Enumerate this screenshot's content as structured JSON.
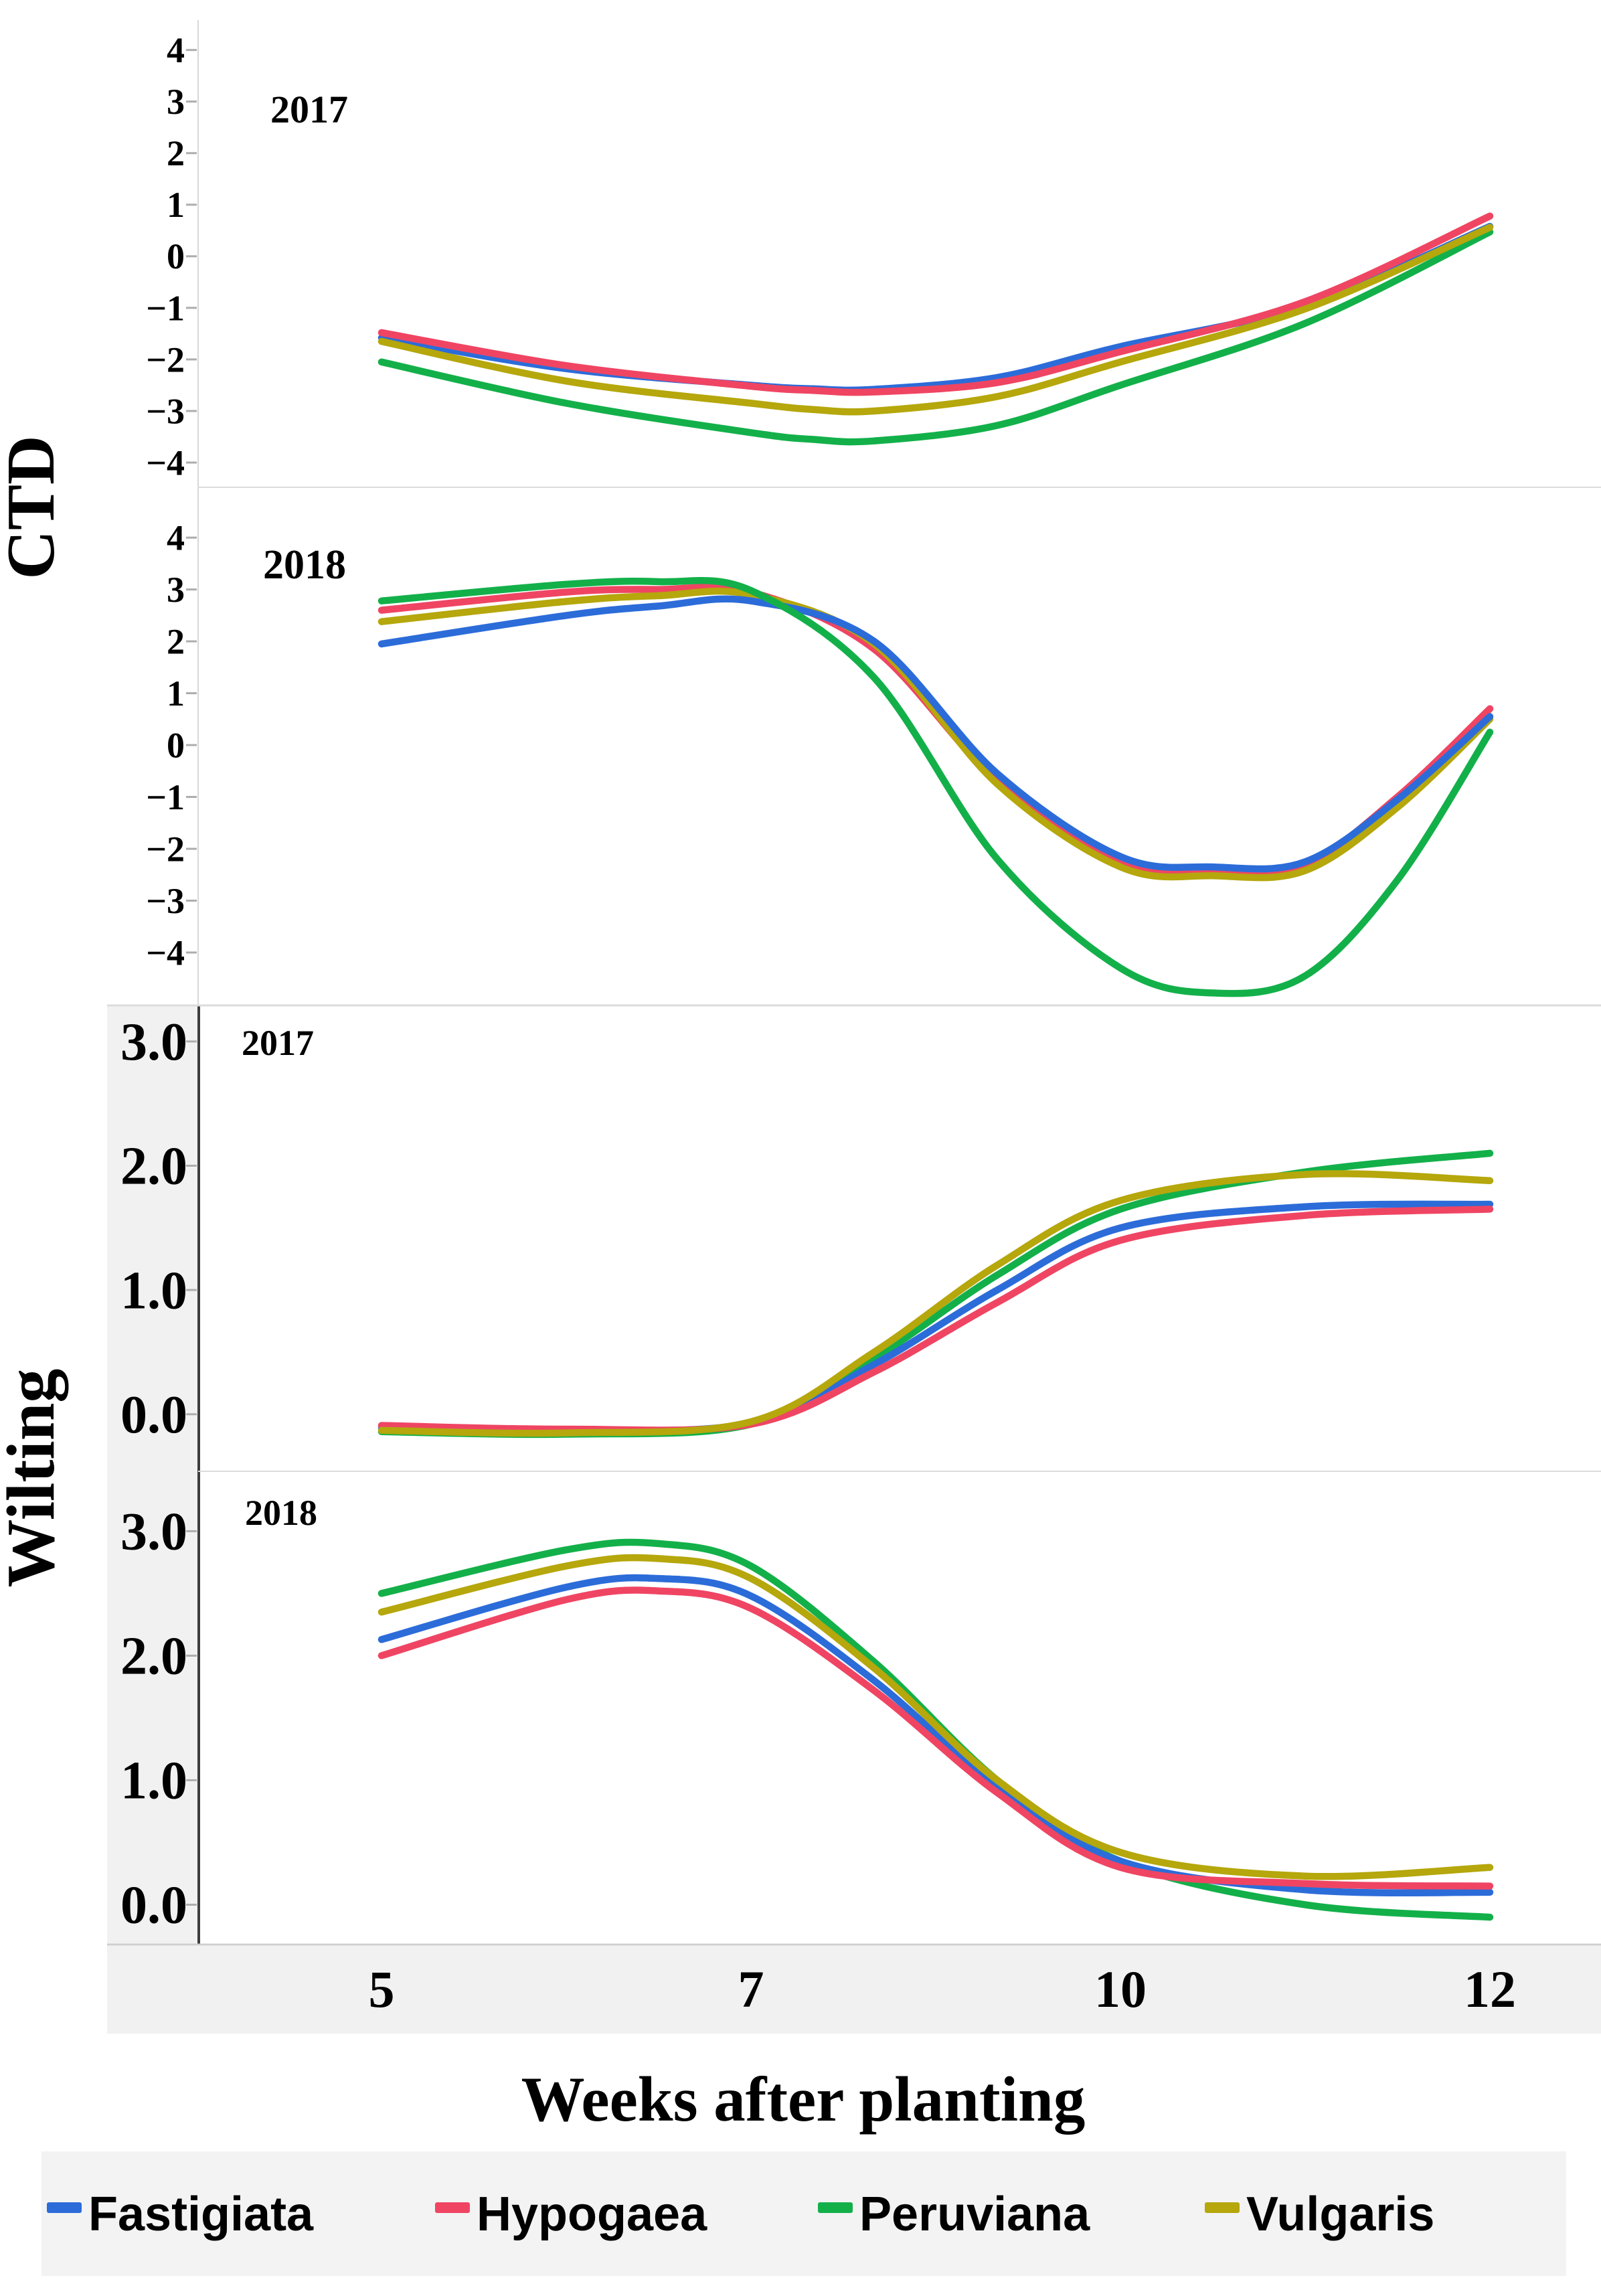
{
  "figure": {
    "background": "#ffffff",
    "x_axis": {
      "label": "Weeks after planting",
      "ticks": [
        "5",
        "7",
        "10",
        "12"
      ],
      "tick_values": [
        5,
        7,
        10,
        12
      ]
    },
    "y_axis_groups": [
      {
        "label": "CTD"
      },
      {
        "label": "Wilting"
      }
    ],
    "legend": {
      "items": [
        {
          "label": "Fastigiata",
          "color": "#2c6cd9"
        },
        {
          "label": "Hypogaea",
          "color": "#ef4563"
        },
        {
          "label": "Peruviana",
          "color": "#13b04a"
        },
        {
          "label": "Vulgaris",
          "color": "#b5a70c"
        }
      ]
    },
    "colors": {
      "separator": "#dcdcdc",
      "axis_dark": "#3d3d3d",
      "axis_light": "#d8d8d8",
      "tick_dash": "#adadad",
      "band": "#f1f1f1",
      "legend_band": "#f3f3f3",
      "text": "#000000"
    }
  },
  "chart_data": [
    {
      "type": "line",
      "panel": "CTD 2017",
      "year_label": "2017",
      "ylabel": "CTD",
      "xlabel": "Weeks after planting",
      "x_ticks": [
        5,
        7,
        10,
        12
      ],
      "x_scale": "ordinal: ticks 5,7,10,12 equally spaced",
      "ylim": [
        -4.48,
        4.58
      ],
      "yticks": [
        [
          4,
          "4"
        ],
        [
          3,
          "3"
        ],
        [
          2,
          "2"
        ],
        [
          1,
          "1"
        ],
        [
          0,
          "0"
        ],
        [
          -1,
          "−1"
        ],
        [
          -2,
          "−2"
        ],
        [
          -3,
          "−3"
        ],
        [
          -4,
          "−4"
        ]
      ],
      "grid": false,
      "series": [
        {
          "name": "Fastigiata",
          "color": "#2c6cd9",
          "points": [
            [
              5,
              -1.58
            ],
            [
              6,
              -2.18
            ],
            [
              7,
              -2.5
            ],
            [
              7.5,
              -2.57
            ],
            [
              8,
              -2.58
            ],
            [
              9,
              -2.35
            ],
            [
              10,
              -1.75
            ],
            [
              11,
              -0.95
            ],
            [
              12,
              0.58
            ]
          ]
        },
        {
          "name": "Peruviana",
          "color": "#13b04a",
          "points": [
            [
              5,
              -2.05
            ],
            [
              6,
              -2.85
            ],
            [
              7,
              -3.42
            ],
            [
              7.5,
              -3.55
            ],
            [
              8,
              -3.58
            ],
            [
              9,
              -3.28
            ],
            [
              10,
              -2.5
            ],
            [
              11,
              -1.3
            ],
            [
              12,
              0.47
            ]
          ]
        },
        {
          "name": "Vulgaris",
          "color": "#b5a70c",
          "points": [
            [
              5,
              -1.65
            ],
            [
              6,
              -2.42
            ],
            [
              7,
              -2.85
            ],
            [
              7.5,
              -2.97
            ],
            [
              8,
              -3.0
            ],
            [
              9,
              -2.72
            ],
            [
              10,
              -2.05
            ],
            [
              11,
              -1.02
            ],
            [
              12,
              0.56
            ]
          ]
        },
        {
          "name": "Hypogaea",
          "color": "#ef4563",
          "points": [
            [
              5,
              -1.48
            ],
            [
              6,
              -2.12
            ],
            [
              7,
              -2.52
            ],
            [
              7.5,
              -2.6
            ],
            [
              8,
              -2.63
            ],
            [
              9,
              -2.45
            ],
            [
              10,
              -1.85
            ],
            [
              11,
              -0.88
            ],
            [
              12,
              0.78
            ]
          ]
        }
      ]
    },
    {
      "type": "line",
      "panel": "CTD 2018",
      "year_label": "2018",
      "ylabel": "CTD",
      "xlabel": "Weeks after planting",
      "x_ticks": [
        5,
        7,
        10,
        12
      ],
      "x_scale": "ordinal: ticks 5,7,10,12 equally spaced",
      "ylim": [
        -5.02,
        4.97
      ],
      "yticks": [
        [
          4,
          "4"
        ],
        [
          3,
          "3"
        ],
        [
          2,
          "2"
        ],
        [
          1,
          "1"
        ],
        [
          0,
          "0"
        ],
        [
          -1,
          "−1"
        ],
        [
          -2,
          "−2"
        ],
        [
          -3,
          "−3"
        ],
        [
          -4,
          "−4"
        ]
      ],
      "grid": false,
      "series": [
        {
          "name": "Hypogaea",
          "color": "#ef4563",
          "points": [
            [
              5,
              2.6
            ],
            [
              6,
              2.95
            ],
            [
              6.5,
              3.0
            ],
            [
              7,
              2.95
            ],
            [
              8,
              1.85
            ],
            [
              9,
              -0.7
            ],
            [
              10,
              -2.25
            ],
            [
              10.5,
              -2.42
            ],
            [
              11,
              -2.3
            ],
            [
              11.5,
              -1.0
            ],
            [
              12,
              0.7
            ]
          ]
        },
        {
          "name": "Vulgaris",
          "color": "#b5a70c",
          "points": [
            [
              5,
              2.38
            ],
            [
              6,
              2.77
            ],
            [
              6.5,
              2.88
            ],
            [
              7,
              2.9
            ],
            [
              8,
              1.95
            ],
            [
              9,
              -0.75
            ],
            [
              10,
              -2.35
            ],
            [
              10.5,
              -2.52
            ],
            [
              11,
              -2.42
            ],
            [
              11.5,
              -1.2
            ],
            [
              12,
              0.5
            ]
          ]
        },
        {
          "name": "Fastigiata",
          "color": "#2c6cd9",
          "points": [
            [
              5,
              1.95
            ],
            [
              6,
              2.5
            ],
            [
              6.5,
              2.68
            ],
            [
              7,
              2.78
            ],
            [
              8,
              2.0
            ],
            [
              9,
              -0.55
            ],
            [
              10,
              -2.15
            ],
            [
              10.5,
              -2.35
            ],
            [
              11,
              -2.25
            ],
            [
              11.5,
              -1.05
            ],
            [
              12,
              0.55
            ]
          ]
        },
        {
          "name": "Peruviana",
          "color": "#13b04a",
          "points": [
            [
              5,
              2.78
            ],
            [
              6,
              3.1
            ],
            [
              6.5,
              3.15
            ],
            [
              7,
              2.98
            ],
            [
              8,
              1.3
            ],
            [
              9,
              -2.2
            ],
            [
              10,
              -4.3
            ],
            [
              10.5,
              -4.78
            ],
            [
              11,
              -4.45
            ],
            [
              11.5,
              -2.6
            ],
            [
              12,
              0.25
            ]
          ]
        }
      ]
    },
    {
      "type": "line",
      "panel": "Wilting 2017",
      "year_label": "2017",
      "ylabel": "Wilting",
      "xlabel": "Weeks after planting",
      "x_ticks": [
        5,
        7,
        10,
        12
      ],
      "x_scale": "ordinal: ticks 5,7,10,12 equally spaced",
      "ylim": [
        -0.47,
        3.29
      ],
      "yticks": [
        [
          3,
          "3.0"
        ],
        [
          2,
          "2.0"
        ],
        [
          1,
          "1.0"
        ],
        [
          0,
          "0.0"
        ]
      ],
      "grid": false,
      "series": [
        {
          "name": "Peruviana",
          "color": "#13b04a",
          "points": [
            [
              5,
              -0.14
            ],
            [
              6,
              -0.16
            ],
            [
              7,
              -0.08
            ],
            [
              8,
              0.45
            ],
            [
              9,
              1.12
            ],
            [
              10,
              1.65
            ],
            [
              11,
              1.95
            ],
            [
              12,
              2.1
            ]
          ]
        },
        {
          "name": "Fastigiata",
          "color": "#2c6cd9",
          "points": [
            [
              5,
              -0.11
            ],
            [
              6,
              -0.13
            ],
            [
              7,
              -0.07
            ],
            [
              8,
              0.4
            ],
            [
              9,
              1.0
            ],
            [
              10,
              1.5
            ],
            [
              11,
              1.67
            ],
            [
              12,
              1.69
            ]
          ]
        },
        {
          "name": "Hypogaea",
          "color": "#ef4563",
          "points": [
            [
              5,
              -0.09
            ],
            [
              6,
              -0.12
            ],
            [
              7,
              -0.08
            ],
            [
              8,
              0.34
            ],
            [
              9,
              0.9
            ],
            [
              10,
              1.4
            ],
            [
              11,
              1.6
            ],
            [
              12,
              1.65
            ]
          ]
        },
        {
          "name": "Vulgaris",
          "color": "#b5a70c",
          "points": [
            [
              5,
              -0.13
            ],
            [
              6,
              -0.15
            ],
            [
              7,
              -0.06
            ],
            [
              8,
              0.5
            ],
            [
              9,
              1.2
            ],
            [
              10,
              1.72
            ],
            [
              11,
              1.93
            ],
            [
              12,
              1.88
            ]
          ]
        }
      ]
    },
    {
      "type": "line",
      "panel": "Wilting 2018",
      "year_label": "2018",
      "ylabel": "Wilting",
      "xlabel": "Weeks after planting",
      "x_ticks": [
        5,
        7,
        10,
        12
      ],
      "x_scale": "ordinal: ticks 5,7,10,12 equally spaced",
      "ylim": [
        -0.32,
        3.47
      ],
      "yticks": [
        [
          3,
          "3.0"
        ],
        [
          2,
          "2.0"
        ],
        [
          1,
          "1.0"
        ],
        [
          0,
          "0.0"
        ]
      ],
      "grid": false,
      "series": [
        {
          "name": "Peruviana",
          "color": "#13b04a",
          "points": [
            [
              5,
              2.5
            ],
            [
              6,
              2.85
            ],
            [
              6.5,
              2.9
            ],
            [
              7,
              2.72
            ],
            [
              8,
              1.95
            ],
            [
              9,
              1.0
            ],
            [
              10,
              0.35
            ],
            [
              11,
              0.0
            ],
            [
              12,
              -0.1
            ]
          ]
        },
        {
          "name": "Fastigiata",
          "color": "#2c6cd9",
          "points": [
            [
              5,
              2.13
            ],
            [
              6,
              2.55
            ],
            [
              6.5,
              2.62
            ],
            [
              7,
              2.48
            ],
            [
              8,
              1.8
            ],
            [
              9,
              0.95
            ],
            [
              10,
              0.35
            ],
            [
              11,
              0.12
            ],
            [
              12,
              0.1
            ]
          ]
        },
        {
          "name": "Hypogaea",
          "color": "#ef4563",
          "points": [
            [
              5,
              2.0
            ],
            [
              6,
              2.45
            ],
            [
              6.5,
              2.52
            ],
            [
              7,
              2.38
            ],
            [
              8,
              1.72
            ],
            [
              9,
              0.9
            ],
            [
              10,
              0.3
            ],
            [
              11,
              0.17
            ],
            [
              12,
              0.15
            ]
          ]
        },
        {
          "name": "Vulgaris",
          "color": "#b5a70c",
          "points": [
            [
              5,
              2.35
            ],
            [
              6,
              2.72
            ],
            [
              6.5,
              2.78
            ],
            [
              7,
              2.62
            ],
            [
              8,
              1.9
            ],
            [
              9,
              1.0
            ],
            [
              10,
              0.42
            ],
            [
              11,
              0.23
            ],
            [
              12,
              0.3
            ]
          ]
        }
      ]
    }
  ]
}
